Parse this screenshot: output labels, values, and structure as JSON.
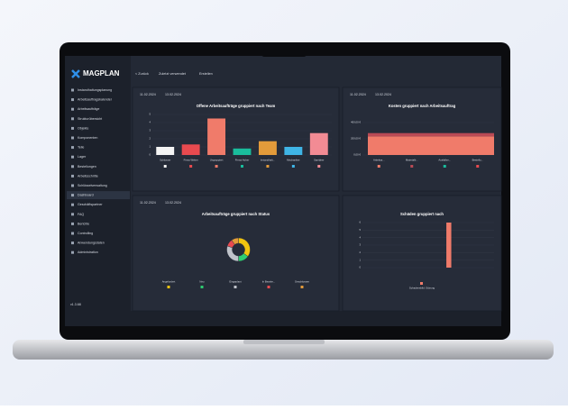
{
  "brand": "MAGPLAN",
  "toolbar": [
    "< Zurück",
    "Zuletzt verwendet",
    "Erstellen"
  ],
  "sidebar": {
    "items": [
      "Instandhaltungsplanung",
      "Arbeitsauftragskalender",
      "Arbeitsaufträge",
      "Strukturübersicht",
      "Objekte",
      "Komponenten",
      "Teile",
      "Lager",
      "Bestellungen",
      "Arbeitsschritte",
      "Schlüsselverwaltung",
      "Dashboard",
      "Geschäftspartner",
      "FAQ",
      "Berichte",
      "Controlling",
      "Anwendungsdaten",
      "Administration"
    ],
    "active": 11,
    "version": "v1.3.68"
  },
  "panels": [
    {
      "date_from": "11.02.2024",
      "date_to": "13.02.2024",
      "chart_data": {
        "type": "bar",
        "title": "Offene Arbeitsaufträge gruppiert nach Team",
        "categories": [
          "Schlosser",
          "Firma Weber",
          "Ungruppiert",
          "Firma Huber",
          "Instandhalt...",
          "Mechaniker",
          "Sanitärer"
        ],
        "values": [
          1,
          1.3,
          4.5,
          0.8,
          1.7,
          1,
          2.7
        ],
        "colors": [
          "#f4f4f4",
          "#e84a4f",
          "#f07b6a",
          "#1abc9c",
          "#e39b3a",
          "#3fb5e6",
          "#f28b94"
        ],
        "ylim": [
          0,
          5
        ],
        "yticks": [
          0,
          1,
          2,
          3,
          4,
          5
        ]
      }
    },
    {
      "date_from": "11.02.2024",
      "date_to": "13.02.2024",
      "chart_data": {
        "type": "stacked",
        "title": "Kosten gruppiert nach Arbeitsauftrag",
        "series": [
          {
            "name": "Arbeitsa...",
            "color": "#f07b6a",
            "values": [
              230
            ]
          },
          {
            "name": "Materialb...",
            "color": "#b94a55",
            "values": [
              40
            ]
          },
          {
            "name": "Ausfallze...",
            "color": "#1abc9c",
            "values": [
              0
            ]
          },
          {
            "name": "Bestellu...",
            "color": "#e84a4f",
            "values": [
              0
            ]
          }
        ],
        "ylim": [
          0,
          500
        ],
        "yticks": [
          {
            "value": 0,
            "label": "0,00 €"
          },
          {
            "value": 200,
            "label": "200,00 €"
          },
          {
            "value": 400,
            "label": "400,00 €"
          }
        ]
      }
    },
    {
      "date_from": "11.02.2024",
      "date_to": "13.02.2024",
      "chart_data": {
        "type": "pie",
        "title": "Arbeitsaufträge gruppiert nach Status",
        "categories": [
          "Angefordert",
          "Neu",
          "Eingeplant",
          "In Bearbe...",
          "Geschlossen"
        ],
        "values": [
          35,
          15,
          30,
          10,
          10
        ],
        "colors": [
          "#f1c40f",
          "#2ecc71",
          "#bfc3ca",
          "#e84a4f",
          "#e39b3a"
        ]
      }
    },
    {
      "chart_data": {
        "type": "bar",
        "title": "Schäden gruppiert nach",
        "categories": [
          null,
          null,
          null,
          null,
          null,
          null,
          null,
          null,
          null,
          null,
          null,
          null,
          null,
          null,
          null,
          null
        ],
        "values": [
          0,
          0,
          0,
          0,
          0,
          0,
          0,
          0,
          0,
          0,
          6,
          0,
          0,
          0,
          0,
          0
        ],
        "color": "#f07b6a",
        "legend": "Schadensbild: Störung",
        "ylim": [
          0,
          6
        ],
        "yticks": [
          0,
          1,
          2,
          3,
          4,
          5,
          6
        ]
      }
    }
  ]
}
